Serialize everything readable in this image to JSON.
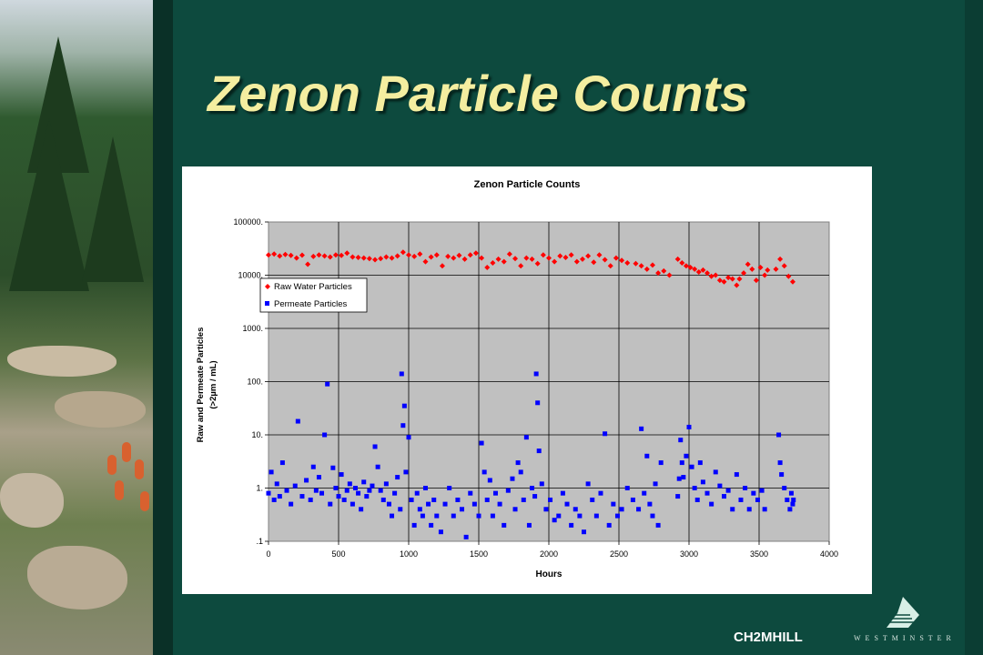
{
  "slide": {
    "title": "Zenon Particle Counts",
    "brand": "CH2MHILL",
    "brand2": "WESTMINSTER"
  },
  "colors": {
    "background": "#0d4a3e",
    "title": "#f4eea0",
    "raw_series": "#ff0000",
    "permeate_series": "#0000ff",
    "plot_area": "#c0c0c0"
  },
  "chart_data": {
    "type": "scatter",
    "title": "Zenon Particle Counts",
    "xlabel": "Hours",
    "ylabel": "Raw and Permeate Particles",
    "ylabel2": "(>2µm / mL)",
    "xlim": [
      0,
      4000
    ],
    "ylim": [
      0.1,
      100000
    ],
    "yscale": "log",
    "grid": true,
    "legend_position": "top-left",
    "x_ticks": [
      "0",
      "500",
      "1000",
      "1500",
      "2000",
      "2500",
      "3000",
      "3500",
      "4000"
    ],
    "y_ticks": [
      ".1",
      "1.",
      "10.",
      "100.",
      "1000.",
      "10000.",
      "100000."
    ],
    "series": [
      {
        "name": "Raw Water Particles",
        "marker": "diamond",
        "x": [
          0,
          40,
          80,
          120,
          160,
          200,
          240,
          280,
          320,
          360,
          400,
          440,
          480,
          520,
          560,
          600,
          640,
          680,
          720,
          760,
          800,
          840,
          880,
          920,
          960,
          1000,
          1040,
          1080,
          1120,
          1160,
          1200,
          1240,
          1280,
          1320,
          1360,
          1400,
          1440,
          1480,
          1520,
          1560,
          1600,
          1640,
          1680,
          1720,
          1760,
          1800,
          1840,
          1880,
          1920,
          1960,
          2000,
          2040,
          2080,
          2120,
          2160,
          2200,
          2240,
          2280,
          2320,
          2360,
          2400,
          2440,
          2480,
          2520,
          2560,
          2620,
          2660,
          2700,
          2740,
          2780,
          2820,
          2860,
          2920,
          2950,
          2980,
          3010,
          3040,
          3070,
          3100,
          3130,
          3160,
          3190,
          3220,
          3250,
          3280,
          3310,
          3340,
          3360,
          3390,
          3420,
          3450,
          3480,
          3510,
          3540,
          3560,
          3620,
          3650,
          3680,
          3710,
          3740
        ],
        "y": [
          24000,
          25000,
          23000,
          24500,
          23500,
          21000,
          23800,
          16000,
          22500,
          24000,
          23000,
          22000,
          24000,
          23500,
          26000,
          22000,
          21500,
          21000,
          20500,
          19500,
          20500,
          22000,
          21000,
          23000,
          27000,
          24000,
          22500,
          25000,
          18000,
          22000,
          24000,
          15000,
          22500,
          21000,
          23500,
          20000,
          24000,
          26000,
          21000,
          14000,
          17000,
          20000,
          18000,
          25000,
          20500,
          15000,
          21000,
          20000,
          16500,
          24000,
          21000,
          18000,
          23000,
          21500,
          24000,
          18000,
          20000,
          23000,
          17500,
          24000,
          19500,
          15000,
          21000,
          19000,
          17000,
          16500,
          15000,
          13000,
          15500,
          11000,
          12000,
          10000,
          20000,
          17000,
          15000,
          14000,
          13000,
          11500,
          12500,
          11000,
          9500,
          10000,
          8000,
          7500,
          9000,
          8500,
          6500,
          8500,
          11000,
          16000,
          13000,
          8000,
          14000,
          10000,
          12500,
          13000,
          20000,
          15000,
          9500,
          7500
        ]
      },
      {
        "name": "Permeate Particles",
        "marker": "square",
        "x": [
          0,
          20,
          40,
          60,
          80,
          100,
          130,
          160,
          190,
          210,
          240,
          270,
          300,
          320,
          340,
          360,
          380,
          400,
          420,
          440,
          460,
          480,
          500,
          520,
          540,
          560,
          580,
          600,
          620,
          640,
          660,
          680,
          700,
          720,
          740,
          760,
          780,
          800,
          820,
          840,
          860,
          880,
          900,
          920,
          940,
          950,
          960,
          970,
          980,
          1000,
          1020,
          1040,
          1060,
          1080,
          1100,
          1120,
          1140,
          1160,
          1180,
          1200,
          1230,
          1260,
          1290,
          1320,
          1350,
          1380,
          1410,
          1440,
          1470,
          1500,
          1520,
          1540,
          1560,
          1580,
          1600,
          1620,
          1650,
          1680,
          1710,
          1740,
          1760,
          1780,
          1800,
          1820,
          1840,
          1860,
          1880,
          1900,
          1910,
          1920,
          1930,
          1950,
          1980,
          2010,
          2040,
          2070,
          2100,
          2130,
          2160,
          2190,
          2220,
          2250,
          2280,
          2310,
          2340,
          2370,
          2400,
          2430,
          2460,
          2490,
          2520,
          2560,
          2600,
          2640,
          2660,
          2680,
          2700,
          2720,
          2740,
          2760,
          2780,
          2800,
          2920,
          2930,
          2940,
          2950,
          2960,
          2980,
          3000,
          3020,
          3040,
          3060,
          3080,
          3100,
          3130,
          3160,
          3190,
          3220,
          3250,
          3280,
          3310,
          3340,
          3370,
          3400,
          3430,
          3460,
          3490,
          3520,
          3540,
          3640,
          3650,
          3660,
          3680,
          3700,
          3720,
          3730,
          3740,
          3745
        ],
        "y": [
          0.8,
          2.0,
          0.6,
          1.2,
          0.7,
          3.0,
          0.9,
          0.5,
          1.1,
          18,
          0.7,
          1.4,
          0.6,
          2.5,
          0.9,
          1.6,
          0.8,
          10,
          90,
          0.5,
          2.4,
          1.0,
          0.7,
          1.8,
          0.6,
          0.9,
          1.2,
          0.5,
          1.0,
          0.8,
          0.4,
          1.3,
          0.7,
          0.9,
          1.1,
          6.0,
          2.5,
          0.9,
          0.6,
          1.2,
          0.5,
          0.3,
          0.8,
          1.6,
          0.4,
          140,
          15,
          35,
          2.0,
          9.0,
          0.6,
          0.2,
          0.8,
          0.4,
          0.3,
          1.0,
          0.5,
          0.2,
          0.6,
          0.3,
          0.15,
          0.5,
          1.0,
          0.3,
          0.6,
          0.4,
          0.12,
          0.8,
          0.5,
          0.3,
          7,
          2.0,
          0.6,
          1.4,
          0.3,
          0.8,
          0.5,
          0.2,
          0.9,
          1.5,
          0.4,
          3.0,
          2.0,
          0.6,
          9.0,
          0.2,
          1.0,
          0.7,
          140,
          40,
          5.0,
          1.2,
          0.4,
          0.6,
          0.25,
          0.3,
          0.8,
          0.5,
          0.2,
          0.4,
          0.3,
          0.15,
          1.2,
          0.6,
          0.3,
          0.8,
          10.5,
          0.2,
          0.5,
          0.3,
          0.4,
          1.0,
          0.6,
          0.4,
          13,
          0.8,
          4.0,
          0.5,
          0.3,
          1.2,
          0.2,
          3.0,
          0.7,
          1.5,
          8.0,
          3.0,
          1.6,
          4.0,
          14,
          2.5,
          1.0,
          0.6,
          3.0,
          1.3,
          0.8,
          0.5,
          2.0,
          1.1,
          0.7,
          0.9,
          0.4,
          1.8,
          0.6,
          1.0,
          0.4,
          0.8,
          0.6,
          0.9,
          0.4,
          10,
          3.0,
          1.8,
          1.0,
          0.6,
          0.4,
          0.8,
          0.5,
          0.6
        ]
      }
    ]
  }
}
